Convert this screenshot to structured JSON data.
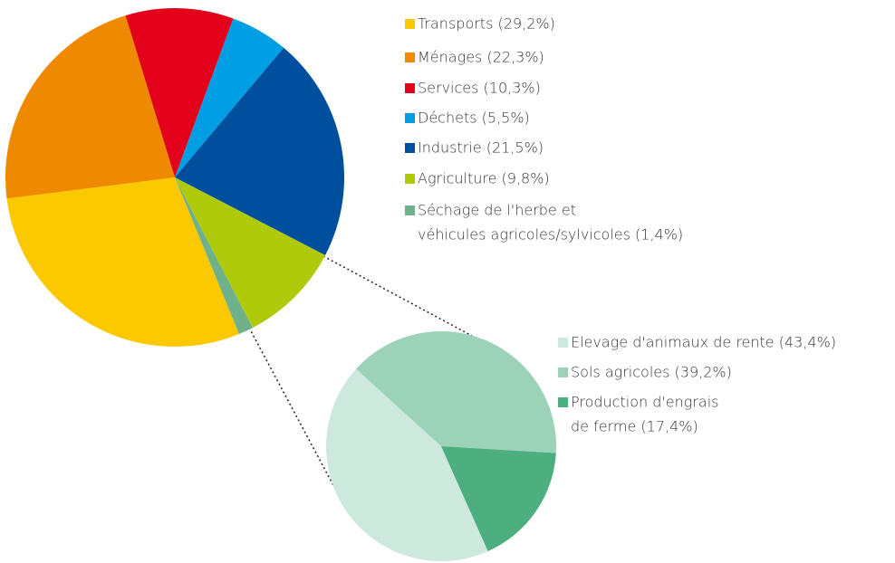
{
  "chart_data": [
    {
      "type": "pie",
      "categories": [
        [
          "Transports (29,2%)"
        ],
        [
          "Ménages (22,3%)"
        ],
        [
          "Services (10,3%)"
        ],
        [
          "Déchets (5,5%)"
        ],
        [
          "Industrie (21,5%)"
        ],
        [
          "Agriculture (9,8%)"
        ],
        [
          "Séchage de l'herbe et",
          "véhicules agricoles/sylvicoles (1,4%)"
        ]
      ],
      "values": [
        29.2,
        22.3,
        10.3,
        5.5,
        21.5,
        9.8,
        1.4
      ],
      "colors": [
        "#fcc900",
        "#ef8a00",
        "#e2001a",
        "#009fe3",
        "#004f9f",
        "#afca0b",
        "#6fb18a"
      ]
    },
    {
      "type": "pie",
      "categories": [
        [
          "Elevage d'animaux de rente (43,4%)"
        ],
        [
          "Sols agricoles (39,2%)"
        ],
        [
          "Production d'engrais",
          "de ferme (17,4%)"
        ]
      ],
      "values": [
        43.4,
        39.2,
        17.4
      ],
      "colors": [
        "#cde8dc",
        "#9cd3b8",
        "#4daf7f"
      ]
    }
  ]
}
